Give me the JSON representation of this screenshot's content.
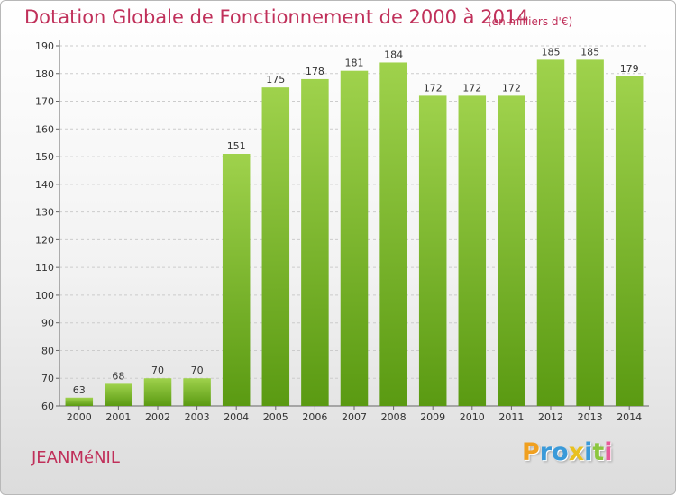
{
  "title": "Dotation Globale de Fonctionnement de 2000 à 2014",
  "subtitle": "(en milliers d'€)",
  "commune": "JEANMéNIL",
  "logo": {
    "letters": [
      "P",
      "r",
      "o",
      "x",
      "i",
      "t",
      "i"
    ],
    "colors": [
      "#f0a020",
      "#3a9ad9",
      "#3a9ad9",
      "#e8c020",
      "#3a9ad9",
      "#8cc63f",
      "#e85a9a"
    ]
  },
  "colors": {
    "bar_top": "#9fd24c",
    "bar_bottom": "#5a9a12",
    "grid": "#cccccc"
  },
  "chart_data": {
    "type": "bar",
    "title": "Dotation Globale de Fonctionnement de 2000 à 2014",
    "subtitle": "(en milliers d'€)",
    "categories": [
      "2000",
      "2001",
      "2002",
      "2003",
      "2004",
      "2005",
      "2006",
      "2007",
      "2008",
      "2009",
      "2010",
      "2011",
      "2012",
      "2013",
      "2014"
    ],
    "values": [
      63,
      68,
      70,
      70,
      151,
      175,
      178,
      181,
      184,
      172,
      172,
      172,
      185,
      185,
      179
    ],
    "data_labels": [
      "63",
      "68",
      "70",
      "70",
      "151",
      "175",
      "178",
      "181",
      "184",
      "172",
      "172",
      "172",
      "185",
      "185",
      "179"
    ],
    "y_ticks": [
      "60",
      "70",
      "80",
      "90",
      "100",
      "110",
      "120",
      "130",
      "140",
      "150",
      "160",
      "170",
      "180",
      "190"
    ],
    "ylim": [
      60,
      190
    ],
    "grid": true,
    "legend": "none"
  }
}
